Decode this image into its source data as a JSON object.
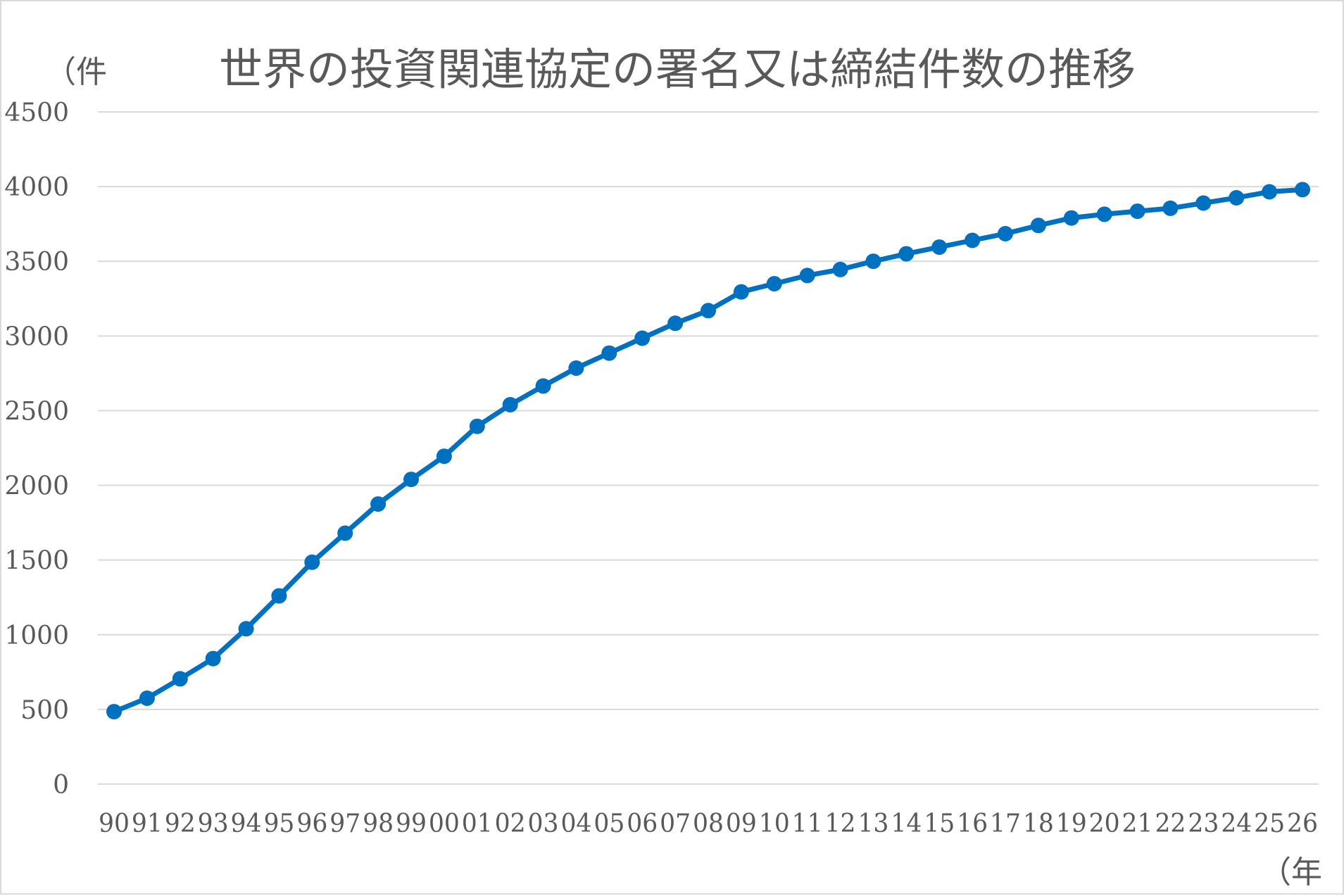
{
  "chart_data": {
    "type": "line",
    "title": "世界の投資関連協定の署名又は締結件数の推移",
    "ylabel": "（件",
    "xlabel": "（年",
    "ylim": [
      0,
      4500
    ],
    "y_ticks": [
      "0",
      "500",
      "1000",
      "1500",
      "2000",
      "2500",
      "3000",
      "3500",
      "4000",
      "4500"
    ],
    "categories": [
      "90",
      "91",
      "92",
      "93",
      "94",
      "95",
      "96",
      "97",
      "98",
      "99",
      "00",
      "01",
      "02",
      "03",
      "04",
      "05",
      "06",
      "07",
      "08",
      "09",
      "10",
      "11",
      "12",
      "13",
      "14",
      "15",
      "16",
      "17",
      "18",
      "19",
      "20",
      "21",
      "22",
      "23",
      "24",
      "25",
      "26"
    ],
    "series": [
      {
        "values": [
          485,
          575,
          705,
          840,
          1040,
          1260,
          1485,
          1680,
          1875,
          2040,
          2195,
          2395,
          2540,
          2665,
          2785,
          2885,
          2985,
          3085,
          3170,
          3295,
          3350,
          3405,
          3445,
          3500,
          3550,
          3595,
          3640,
          3685,
          3740,
          3790,
          3815,
          3835,
          3855,
          3890,
          3925,
          3965,
          3980
        ]
      }
    ],
    "grid": true,
    "legend": "none",
    "colors": {
      "line": "#0070c0",
      "grid": "#d9d9d9",
      "text": "#595959"
    }
  }
}
